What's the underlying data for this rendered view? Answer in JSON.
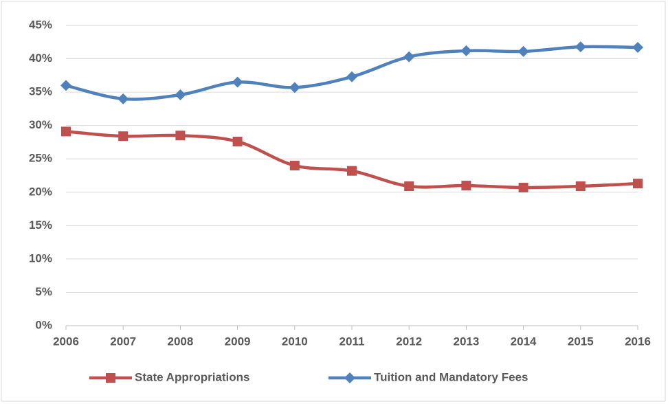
{
  "chart_data": {
    "type": "line",
    "categories": [
      "2006",
      "2007",
      "2008",
      "2009",
      "2010",
      "2011",
      "2012",
      "2013",
      "2014",
      "2015",
      "2016"
    ],
    "series": [
      {
        "name": "State Appropriations",
        "color": "#c0504d",
        "marker": "square",
        "values": [
          29.1,
          28.4,
          28.5,
          27.6,
          24.0,
          23.2,
          20.9,
          21.0,
          20.7,
          20.9,
          21.3
        ]
      },
      {
        "name": "Tuition and Mandatory Fees",
        "color": "#4f81bd",
        "marker": "diamond",
        "values": [
          36.0,
          34.0,
          34.6,
          36.5,
          35.7,
          37.3,
          40.3,
          41.2,
          41.1,
          41.8,
          41.7
        ]
      }
    ],
    "ylim": [
      0,
      45
    ],
    "yticks": [
      {
        "value": 0,
        "label": "0%"
      },
      {
        "value": 5,
        "label": "5%"
      },
      {
        "value": 10,
        "label": "10%"
      },
      {
        "value": 15,
        "label": "15%"
      },
      {
        "value": 20,
        "label": "20%"
      },
      {
        "value": 25,
        "label": "25%"
      },
      {
        "value": 30,
        "label": "30%"
      },
      {
        "value": 35,
        "label": "35%"
      },
      {
        "value": 40,
        "label": "40%"
      },
      {
        "value": 45,
        "label": "45%"
      }
    ],
    "grid": true,
    "smooth": true,
    "legend": "bottom"
  }
}
